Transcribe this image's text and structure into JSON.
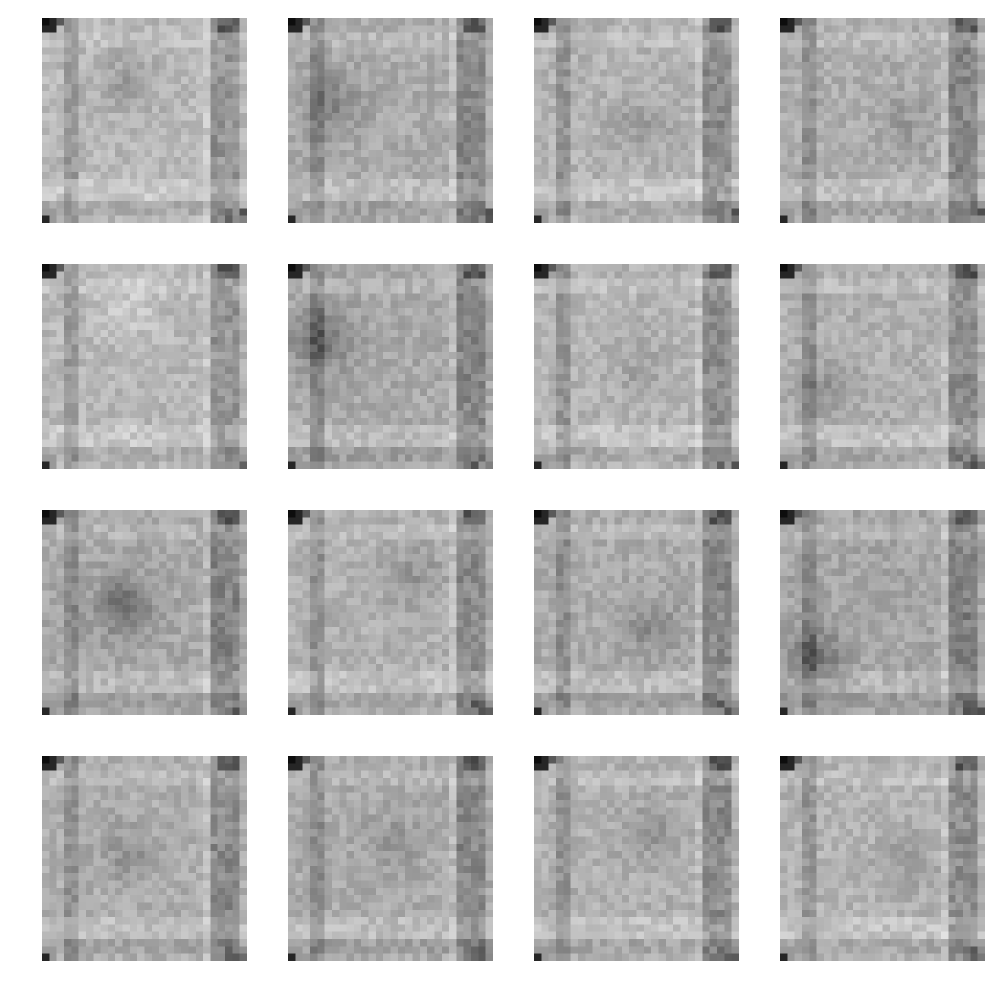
{
  "grid": {
    "rows": 4,
    "cols": 4,
    "sample_resolution": 28,
    "background": "#ffffff",
    "samples": [
      {
        "id": 1,
        "row": 1,
        "col": 1,
        "tone": 0.0,
        "blob_row": 0.3,
        "blob_col": 0.4,
        "blob_strength": 0.1
      },
      {
        "id": 2,
        "row": 1,
        "col": 2,
        "tone": 0.05,
        "blob_row": 0.4,
        "blob_col": 0.2,
        "blob_strength": 0.15
      },
      {
        "id": 3,
        "row": 1,
        "col": 3,
        "tone": 0.02,
        "blob_row": 0.5,
        "blob_col": 0.5,
        "blob_strength": 0.08
      },
      {
        "id": 4,
        "row": 1,
        "col": 4,
        "tone": 0.04,
        "blob_row": 0.5,
        "blob_col": 0.6,
        "blob_strength": 0.08
      },
      {
        "id": 5,
        "row": 2,
        "col": 1,
        "tone": 0.0,
        "blob_row": 0.2,
        "blob_col": 0.4,
        "blob_strength": -0.08
      },
      {
        "id": 6,
        "row": 2,
        "col": 2,
        "tone": 0.06,
        "blob_row": 0.35,
        "blob_col": 0.15,
        "blob_strength": 0.22
      },
      {
        "id": 7,
        "row": 2,
        "col": 3,
        "tone": 0.02,
        "blob_row": 0.5,
        "blob_col": 0.5,
        "blob_strength": 0.06
      },
      {
        "id": 8,
        "row": 2,
        "col": 4,
        "tone": 0.03,
        "blob_row": 0.6,
        "blob_col": 0.2,
        "blob_strength": 0.12
      },
      {
        "id": 9,
        "row": 3,
        "col": 1,
        "tone": 0.06,
        "blob_row": 0.45,
        "blob_col": 0.38,
        "blob_strength": 0.22
      },
      {
        "id": 10,
        "row": 3,
        "col": 2,
        "tone": 0.03,
        "blob_row": 0.3,
        "blob_col": 0.6,
        "blob_strength": 0.1
      },
      {
        "id": 11,
        "row": 3,
        "col": 3,
        "tone": 0.05,
        "blob_row": 0.55,
        "blob_col": 0.55,
        "blob_strength": 0.12
      },
      {
        "id": 12,
        "row": 3,
        "col": 4,
        "tone": 0.07,
        "blob_row": 0.7,
        "blob_col": 0.15,
        "blob_strength": 0.2
      },
      {
        "id": 13,
        "row": 4,
        "col": 1,
        "tone": 0.04,
        "blob_row": 0.45,
        "blob_col": 0.4,
        "blob_strength": 0.1
      },
      {
        "id": 14,
        "row": 4,
        "col": 2,
        "tone": 0.05,
        "blob_row": 0.4,
        "blob_col": 0.5,
        "blob_strength": 0.08
      },
      {
        "id": 15,
        "row": 4,
        "col": 3,
        "tone": 0.03,
        "blob_row": 0.35,
        "blob_col": 0.55,
        "blob_strength": 0.1
      },
      {
        "id": 16,
        "row": 4,
        "col": 4,
        "tone": 0.02,
        "blob_row": 0.5,
        "blob_col": 0.6,
        "blob_strength": 0.08
      }
    ]
  }
}
